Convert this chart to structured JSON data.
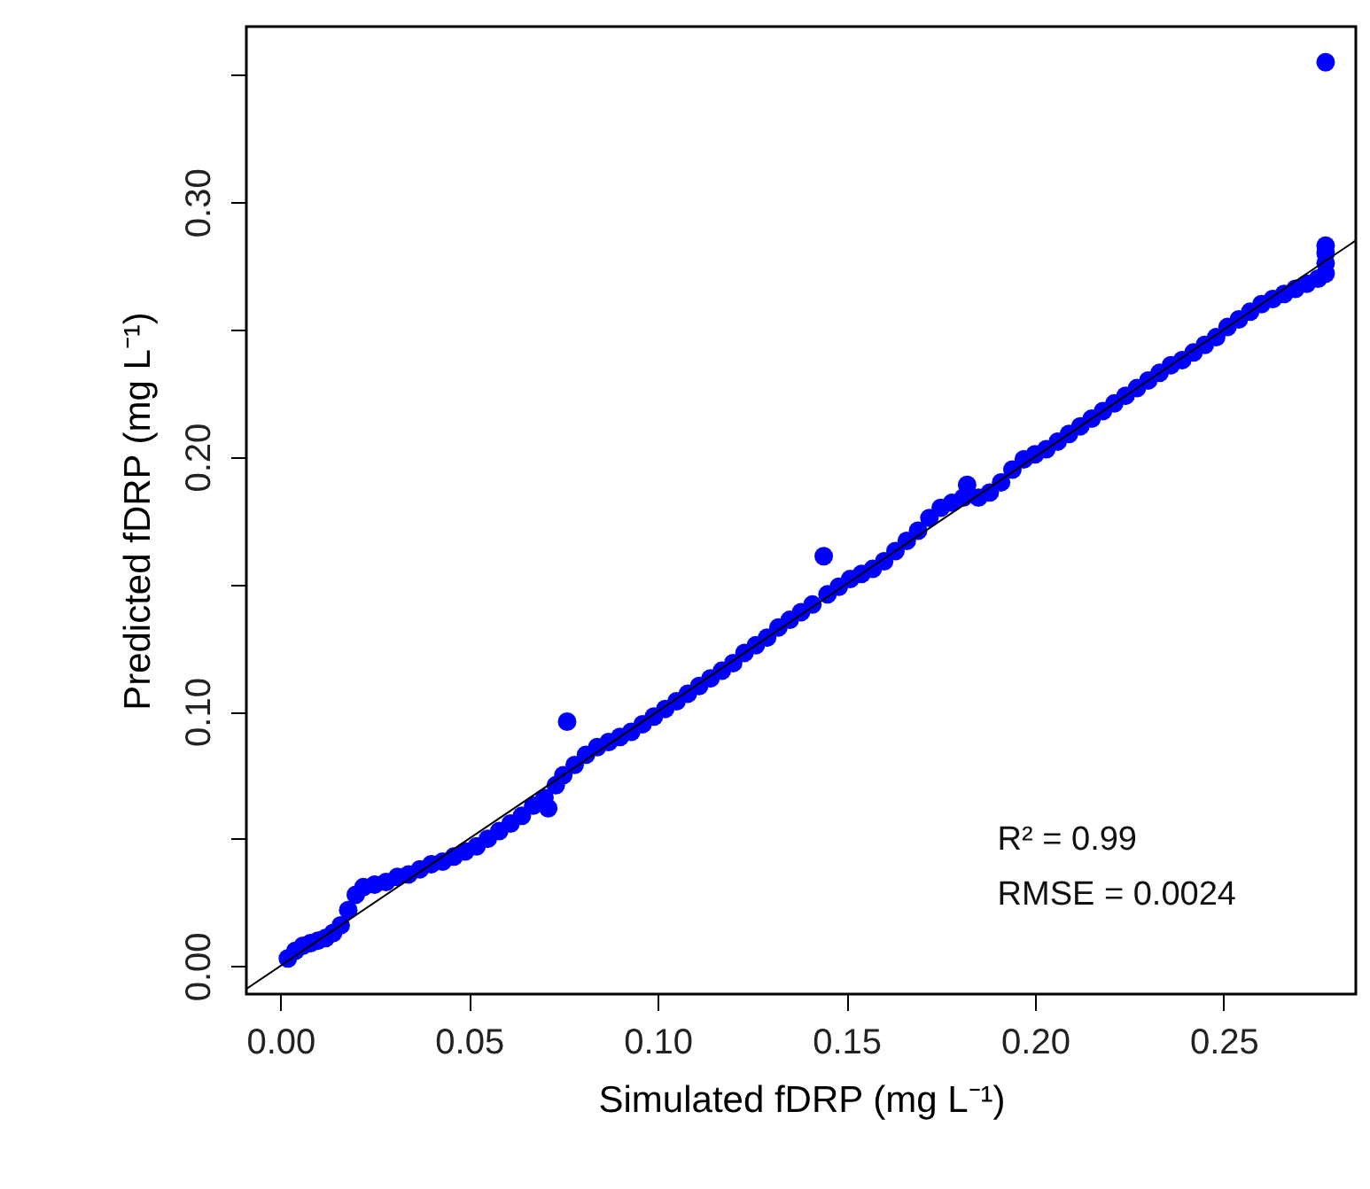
{
  "chart_data": {
    "type": "scatter",
    "xlabel": "Simulated fDRP (mg L⁻¹)",
    "ylabel": "Predicted fDRP (mg L⁻¹)",
    "xlim": [
      -0.009,
      0.285
    ],
    "ylim": [
      -0.011,
      0.369
    ],
    "xticks": [
      {
        "value": 0,
        "label": "0.00"
      },
      {
        "value": 0.05,
        "label": "0.05"
      },
      {
        "value": 0.1,
        "label": "0.10"
      },
      {
        "value": 0.15,
        "label": "0.15"
      },
      {
        "value": 0.2,
        "label": "0.20"
      },
      {
        "value": 0.25,
        "label": "0.25"
      }
    ],
    "yticks": [
      {
        "value": 0,
        "label": "0.00"
      },
      {
        "value": 0.05,
        "label": null
      },
      {
        "value": 0.1,
        "label": "0.10"
      },
      {
        "value": 0.15,
        "label": null
      },
      {
        "value": 0.2,
        "label": "0.20"
      },
      {
        "value": 0.25,
        "label": null
      },
      {
        "value": 0.3,
        "label": "0.30"
      },
      {
        "value": 0.35,
        "label": null
      }
    ],
    "grid": false,
    "annotations": [
      "R² = 0.99",
      "RMSE = 0.0024"
    ],
    "series": [
      {
        "color": "#0000ff",
        "marker": "circle",
        "x": [
          0.002,
          0.004,
          0.006,
          0.008,
          0.01,
          0.012,
          0.014,
          0.016,
          0.018,
          0.02,
          0.022,
          0.025,
          0.028,
          0.031,
          0.034,
          0.037,
          0.04,
          0.043,
          0.046,
          0.049,
          0.052,
          0.055,
          0.058,
          0.061,
          0.064,
          0.067,
          0.07,
          0.071,
          0.073,
          0.075,
          0.076,
          0.078,
          0.081,
          0.084,
          0.087,
          0.09,
          0.093,
          0.096,
          0.099,
          0.102,
          0.105,
          0.108,
          0.111,
          0.114,
          0.117,
          0.12,
          0.123,
          0.126,
          0.129,
          0.132,
          0.135,
          0.138,
          0.141,
          0.144,
          0.145,
          0.148,
          0.151,
          0.154,
          0.157,
          0.16,
          0.163,
          0.166,
          0.169,
          0.172,
          0.175,
          0.178,
          0.181,
          0.182,
          0.185,
          0.188,
          0.191,
          0.194,
          0.197,
          0.2,
          0.203,
          0.206,
          0.209,
          0.212,
          0.215,
          0.218,
          0.221,
          0.224,
          0.227,
          0.23,
          0.233,
          0.236,
          0.239,
          0.242,
          0.245,
          0.248,
          0.251,
          0.254,
          0.257,
          0.26,
          0.263,
          0.266,
          0.269,
          0.272,
          0.275,
          0.277,
          0.277,
          0.277,
          0.277,
          0.277
        ],
        "values": [
          0.003,
          0.006,
          0.008,
          0.009,
          0.01,
          0.011,
          0.013,
          0.016,
          0.022,
          0.028,
          0.031,
          0.032,
          0.033,
          0.035,
          0.036,
          0.038,
          0.04,
          0.041,
          0.043,
          0.045,
          0.047,
          0.05,
          0.053,
          0.056,
          0.059,
          0.063,
          0.066,
          0.062,
          0.071,
          0.075,
          0.096,
          0.079,
          0.083,
          0.086,
          0.088,
          0.09,
          0.092,
          0.095,
          0.098,
          0.101,
          0.104,
          0.107,
          0.11,
          0.113,
          0.116,
          0.119,
          0.123,
          0.126,
          0.129,
          0.133,
          0.136,
          0.139,
          0.142,
          0.161,
          0.146,
          0.149,
          0.152,
          0.154,
          0.156,
          0.159,
          0.163,
          0.167,
          0.171,
          0.176,
          0.18,
          0.182,
          0.184,
          0.189,
          0.184,
          0.186,
          0.19,
          0.195,
          0.199,
          0.201,
          0.203,
          0.206,
          0.209,
          0.212,
          0.215,
          0.218,
          0.221,
          0.224,
          0.227,
          0.23,
          0.233,
          0.236,
          0.238,
          0.241,
          0.244,
          0.247,
          0.251,
          0.254,
          0.257,
          0.26,
          0.262,
          0.264,
          0.266,
          0.268,
          0.27,
          0.272,
          0.276,
          0.28,
          0.283,
          0.355
        ]
      },
      {
        "type": "line",
        "color": "#000000",
        "x": [
          -0.009,
          0.285
        ],
        "values": [
          -0.009,
          0.285
        ]
      }
    ]
  }
}
